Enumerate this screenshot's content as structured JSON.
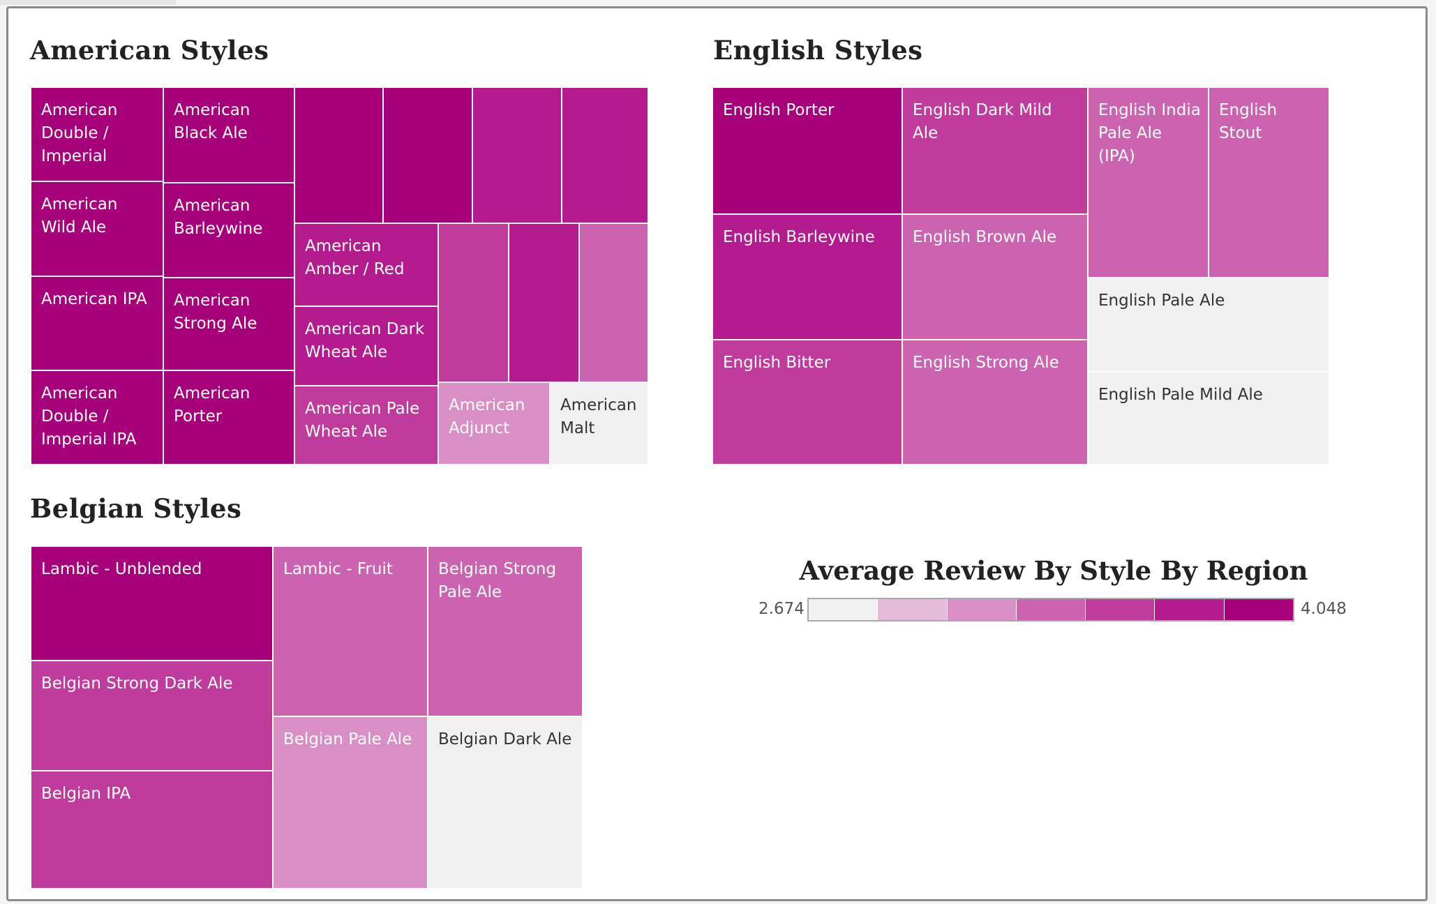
{
  "chart_data": [
    {
      "type": "treemap",
      "title": "American Styles",
      "color_range": [
        2.674,
        4.048
      ],
      "tiles": [
        {
          "label": "American Double / Imperial",
          "value": 4.048
        },
        {
          "label": "American Wild Ale",
          "value": 4.048
        },
        {
          "label": "American IPA",
          "value": 4.048
        },
        {
          "label": "American Double / Imperial IPA",
          "value": 4.048
        },
        {
          "label": "American Black Ale",
          "value": 4.048
        },
        {
          "label": "American Barleywine",
          "value": 4.048
        },
        {
          "label": "American Strong Ale",
          "value": 4.048
        },
        {
          "label": "American Porter",
          "value": 4.048
        },
        {
          "label": "",
          "value": 4.048
        },
        {
          "label": "",
          "value": 4.048
        },
        {
          "label": "",
          "value": 3.85
        },
        {
          "label": "",
          "value": 3.85
        },
        {
          "label": "American Amber / Red",
          "value": 3.85
        },
        {
          "label": "American Dark Wheat Ale",
          "value": 3.85
        },
        {
          "label": "American Pale Wheat Ale",
          "value": 3.65
        },
        {
          "label": "",
          "value": 3.65
        },
        {
          "label": "",
          "value": 3.85
        },
        {
          "label": "",
          "value": 3.45
        },
        {
          "label": "American Adjunct",
          "value": 3.05
        },
        {
          "label": "American Malt",
          "value": 2.674
        }
      ]
    },
    {
      "type": "treemap",
      "title": "English Styles",
      "color_range": [
        2.674,
        4.048
      ],
      "tiles": [
        {
          "label": "English Porter",
          "value": 4.048
        },
        {
          "label": "English Barleywine",
          "value": 3.85
        },
        {
          "label": "English Bitter",
          "value": 3.65
        },
        {
          "label": "English Dark Mild Ale",
          "value": 3.65
        },
        {
          "label": "English Brown Ale",
          "value": 3.45
        },
        {
          "label": "English Strong Ale",
          "value": 3.45
        },
        {
          "label": "English India Pale Ale (IPA)",
          "value": 3.45
        },
        {
          "label": "English Stout",
          "value": 3.25
        },
        {
          "label": "English Pale Ale",
          "value": 2.674
        },
        {
          "label": "English Pale Mild Ale",
          "value": 2.674
        }
      ]
    },
    {
      "type": "treemap",
      "title": "Belgian Styles",
      "color_range": [
        2.674,
        4.048
      ],
      "tiles": [
        {
          "label": "Lambic - Unblended",
          "value": 4.048
        },
        {
          "label": "Belgian Strong Dark Ale",
          "value": 3.65
        },
        {
          "label": "Belgian IPA",
          "value": 3.65
        },
        {
          "label": "Lambic - Fruit",
          "value": 3.45
        },
        {
          "label": "Belgian Strong Pale Ale",
          "value": 3.45
        },
        {
          "label": "Belgian Pale Ale",
          "value": 3.05
        },
        {
          "label": "Belgian Dark Ale",
          "value": 2.674
        }
      ]
    }
  ],
  "legend": {
    "title": "Average Review By Style By Region",
    "min_label": "2.674",
    "max_label": "4.048",
    "colors": [
      "#f0f0f0",
      "#e4bcd9",
      "#d98fc6",
      "#cc63b1",
      "#c03c9c",
      "#b31b8e",
      "#a6007a"
    ]
  },
  "text_dark": "#333333",
  "text_light": "#ffffff"
}
